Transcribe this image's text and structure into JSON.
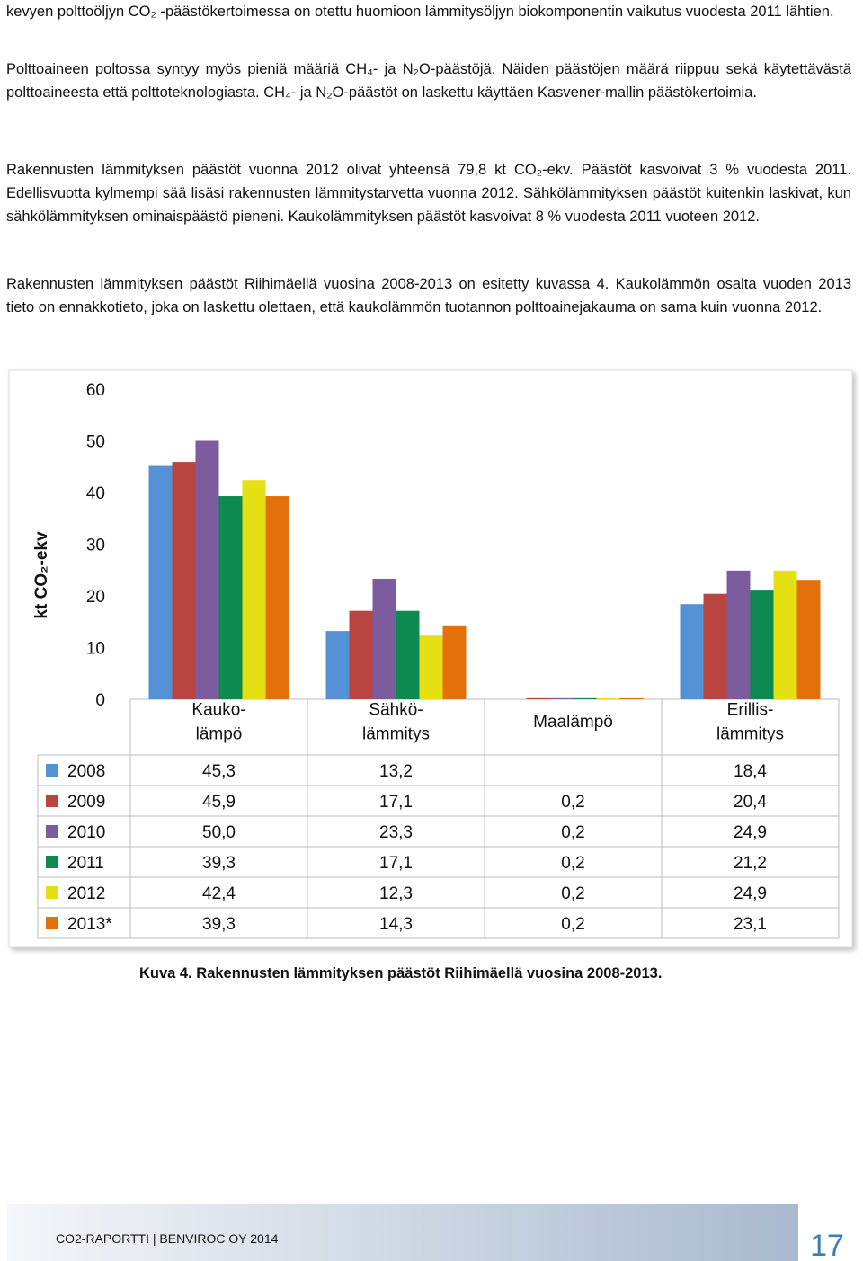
{
  "paragraphs": [
    "kevyen polttoöljyn CO₂ -päästökertoimessa on otettu huomioon lämmitysöljyn biokomponentin vaikutus vuodesta 2011 lähtien.",
    "Polttoaineen poltossa syntyy myös pieniä määriä CH₄- ja N₂O-päästöjä. Näiden päästöjen määrä riippuu sekä käytettävästä polttoaineesta että polttoteknologiasta. CH₄- ja N₂O-päästöt on laskettu käyttäen Kasvener-mallin päästökertoimia.",
    "Rakennusten lämmityksen päästöt vuonna 2012 olivat yhteensä 79,8 kt CO₂-ekv. Päästöt kasvoivat 3 % vuodesta 2011. Edellisvuotta kylmempi sää lisäsi rakennusten lämmitystarvetta vuonna 2012. Sähkölämmityksen päästöt kuitenkin laskivat, kun sähkölämmityksen ominaispäästö pieneni. Kaukolämmityksen päästöt kasvoivat 8 % vuodesta 2011 vuoteen 2012.",
    "Rakennusten lämmityksen päästöt Riihimäellä vuosina 2008-2013 on esitetty kuvassa 4. Kaukolämmön osalta vuoden 2013 tieto on ennakkotieto, joka on laskettu olettaen, että kaukolämmön tuotannon polttoainejakauma on sama kuin vuonna 2012."
  ],
  "chart_data": {
    "type": "bar",
    "y_label": "kt CO₂-ekv",
    "categories": [
      "Kauko-\nlämpö",
      "Sähkö-\nlämmitys",
      "Maalämpö",
      "Erillis-\nlämmitys"
    ],
    "series": [
      {
        "name": "2008",
        "color": "#5592d5",
        "values": [
          45.3,
          13.2,
          null,
          18.4
        ],
        "value_labels": [
          "45,3",
          "13,2",
          null,
          "18,4"
        ]
      },
      {
        "name": "2009",
        "color": "#b94440",
        "values": [
          45.9,
          17.1,
          0.2,
          20.4
        ],
        "value_labels": [
          "45,9",
          "17,1",
          "0,2",
          "20,4"
        ]
      },
      {
        "name": "2010",
        "color": "#7c5c9e",
        "values": [
          50.0,
          23.3,
          0.2,
          24.9
        ],
        "value_labels": [
          "50,0",
          "23,3",
          "0,2",
          "24,9"
        ]
      },
      {
        "name": "2011",
        "color": "#0d8a50",
        "values": [
          39.3,
          17.1,
          0.2,
          21.2
        ],
        "value_labels": [
          "39,3",
          "17,1",
          "0,2",
          "21,2"
        ]
      },
      {
        "name": "2012",
        "color": "#e4e013",
        "values": [
          42.4,
          12.3,
          0.2,
          24.9
        ],
        "value_labels": [
          "42,4",
          "12,3",
          "0,2",
          "24,9"
        ]
      },
      {
        "name": "2013*",
        "color": "#e4700c",
        "values": [
          39.3,
          14.3,
          0.2,
          23.1
        ],
        "value_labels": [
          "39,3",
          "14,3",
          "0,2",
          "23,1"
        ]
      }
    ],
    "ylim": [
      0,
      60
    ],
    "yticks": [
      0,
      10,
      20,
      30,
      40,
      50,
      60
    ]
  },
  "caption": "Kuva 4. Rakennusten lämmityksen päästöt Riihimäellä vuosina 2008-2013.",
  "footer": {
    "report": "CO2-RAPORTTI | BENVIROC OY 2014",
    "page": "17"
  }
}
